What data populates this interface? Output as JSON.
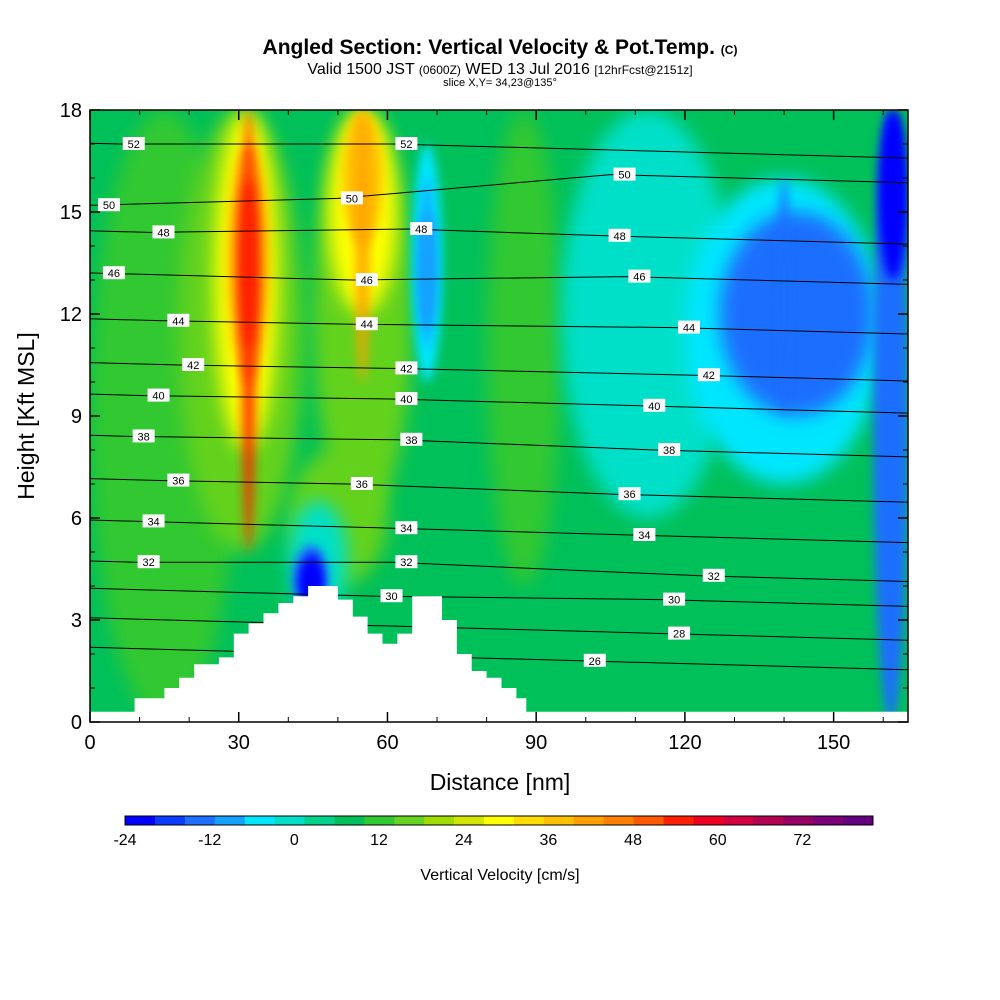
{
  "header": {
    "title": "Angled Section: Vertical Velocity & Pot.Temp.",
    "title_tag": "(C)",
    "valid_prefix": "Valid 1500 JST",
    "valid_z": "(0600Z)",
    "valid_date": "WED 13 Jul 2016",
    "valid_fcst": "[12hrFcst@2151z]",
    "slice": "slice X,Y= 34,23@135°"
  },
  "chart_data": {
    "type": "heatmap",
    "xlabel": "Distance [nm]",
    "ylabel": "Height [Kft MSL]",
    "xlim": [
      0,
      165
    ],
    "ylim": [
      0,
      18
    ],
    "x_ticks": [
      0,
      30,
      60,
      90,
      120,
      150
    ],
    "y_ticks": [
      0,
      3,
      6,
      9,
      12,
      15,
      18
    ],
    "colorbar": {
      "title": "Vertical Velocity [cm/s]",
      "min": -24,
      "max": 78,
      "step": 4,
      "tick_labels": [
        -24,
        -12,
        0,
        12,
        24,
        36,
        48,
        60,
        72
      ],
      "colors": [
        "#0000ff",
        "#0a3cff",
        "#1e6eff",
        "#14a0ff",
        "#00e6ff",
        "#00e0c8",
        "#00d28c",
        "#00c05a",
        "#32c832",
        "#64d21e",
        "#a0dc00",
        "#d2e600",
        "#ffff00",
        "#ffdc00",
        "#ffc000",
        "#ffa000",
        "#ff8000",
        "#ff5a00",
        "#ff2000",
        "#f00020",
        "#d20040",
        "#b40050",
        "#960064",
        "#7a0078",
        "#640080"
      ]
    },
    "velocity_features": [
      {
        "name": "updraft",
        "x": 32,
        "y_range": [
          5,
          18
        ],
        "peak_cms": 50
      },
      {
        "name": "updraft",
        "x": 55,
        "y_range": [
          10,
          18
        ],
        "peak_cms": 36
      },
      {
        "name": "downdraft",
        "x": 68,
        "y_range": [
          11,
          16
        ],
        "peak_cms": -12
      },
      {
        "name": "downdraft",
        "x": 45,
        "y_range": [
          3,
          5
        ],
        "peak_cms": -24
      },
      {
        "name": "downdraft",
        "x": 140,
        "y_range": [
          9,
          16
        ],
        "peak_cms": -16
      },
      {
        "name": "downdraft",
        "x": 162,
        "y_range": [
          14,
          18
        ],
        "peak_cms": -24
      }
    ],
    "isentropes": {
      "unit": "C",
      "levels": [
        26,
        28,
        30,
        32,
        34,
        36,
        38,
        40,
        42,
        44,
        46,
        48,
        50,
        52
      ],
      "label_points": [
        {
          "x": 6,
          "y": 17.0,
          "v": 52
        },
        {
          "x": 61,
          "y": 17.0,
          "v": 52
        },
        {
          "x": 105,
          "y": 16.1,
          "v": 50
        },
        {
          "x": 1,
          "y": 15.2,
          "v": 50
        },
        {
          "x": 50,
          "y": 15.4,
          "v": 50
        },
        {
          "x": 104,
          "y": 14.3,
          "v": 48
        },
        {
          "x": 12,
          "y": 14.4,
          "v": 48
        },
        {
          "x": 64,
          "y": 14.5,
          "v": 48
        },
        {
          "x": 2,
          "y": 13.2,
          "v": 46
        },
        {
          "x": 53,
          "y": 13.0,
          "v": 46
        },
        {
          "x": 108,
          "y": 13.1,
          "v": 46
        },
        {
          "x": 15,
          "y": 11.8,
          "v": 44
        },
        {
          "x": 53,
          "y": 11.7,
          "v": 44
        },
        {
          "x": 118,
          "y": 11.6,
          "v": 44
        },
        {
          "x": 18,
          "y": 10.5,
          "v": 42
        },
        {
          "x": 61,
          "y": 10.4,
          "v": 42
        },
        {
          "x": 122,
          "y": 10.2,
          "v": 42
        },
        {
          "x": 11,
          "y": 9.6,
          "v": 40
        },
        {
          "x": 61,
          "y": 9.5,
          "v": 40
        },
        {
          "x": 111,
          "y": 9.3,
          "v": 40
        },
        {
          "x": 8,
          "y": 8.4,
          "v": 38
        },
        {
          "x": 62,
          "y": 8.3,
          "v": 38
        },
        {
          "x": 114,
          "y": 8.0,
          "v": 38
        },
        {
          "x": 15,
          "y": 7.1,
          "v": 36
        },
        {
          "x": 52,
          "y": 7.0,
          "v": 36
        },
        {
          "x": 106,
          "y": 6.7,
          "v": 36
        },
        {
          "x": 10,
          "y": 5.9,
          "v": 34
        },
        {
          "x": 61,
          "y": 5.7,
          "v": 34
        },
        {
          "x": 109,
          "y": 5.5,
          "v": 34
        },
        {
          "x": 9,
          "y": 4.7,
          "v": 32
        },
        {
          "x": 61,
          "y": 4.7,
          "v": 32
        },
        {
          "x": 123,
          "y": 4.3,
          "v": 32
        },
        {
          "x": 58,
          "y": 3.7,
          "v": 30
        },
        {
          "x": 115,
          "y": 3.6,
          "v": 30
        },
        {
          "x": 116,
          "y": 2.6,
          "v": 28
        },
        {
          "x": 99,
          "y": 1.8,
          "v": 26
        }
      ]
    },
    "terrain": [
      [
        0,
        0.3
      ],
      [
        9,
        0.3
      ],
      [
        9,
        0.7
      ],
      [
        15,
        0.7
      ],
      [
        15,
        1.0
      ],
      [
        18,
        1.0
      ],
      [
        18,
        1.3
      ],
      [
        21,
        1.3
      ],
      [
        21,
        1.7
      ],
      [
        26,
        1.7
      ],
      [
        26,
        1.9
      ],
      [
        29,
        1.9
      ],
      [
        29,
        2.6
      ],
      [
        32,
        2.6
      ],
      [
        32,
        2.9
      ],
      [
        35,
        2.9
      ],
      [
        35,
        3.2
      ],
      [
        38,
        3.2
      ],
      [
        38,
        3.5
      ],
      [
        41,
        3.5
      ],
      [
        41,
        3.7
      ],
      [
        44,
        3.7
      ],
      [
        44,
        4.0
      ],
      [
        50,
        4.0
      ],
      [
        50,
        3.6
      ],
      [
        53,
        3.6
      ],
      [
        53,
        3.1
      ],
      [
        56,
        3.1
      ],
      [
        56,
        2.6
      ],
      [
        59,
        2.6
      ],
      [
        59,
        2.3
      ],
      [
        62,
        2.3
      ],
      [
        62,
        2.6
      ],
      [
        65,
        2.6
      ],
      [
        65,
        3.7
      ],
      [
        71,
        3.7
      ],
      [
        71,
        3.0
      ],
      [
        74,
        3.0
      ],
      [
        74,
        2.0
      ],
      [
        77,
        2.0
      ],
      [
        77,
        1.5
      ],
      [
        80,
        1.5
      ],
      [
        80,
        1.3
      ],
      [
        83,
        1.3
      ],
      [
        83,
        1.0
      ],
      [
        86,
        1.0
      ],
      [
        86,
        0.7
      ],
      [
        88,
        0.7
      ],
      [
        88,
        0.3
      ],
      [
        165,
        0.3
      ]
    ]
  }
}
